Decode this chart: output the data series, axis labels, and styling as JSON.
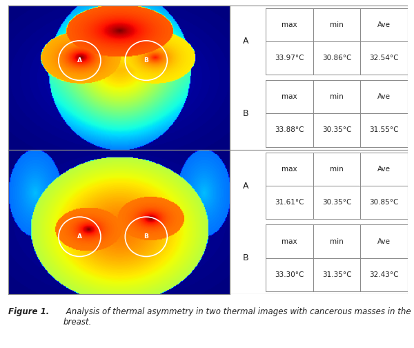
{
  "figure_caption_bold": "Figure 1.",
  "figure_caption_italic": " Analysis of thermal asymmetry in two thermal images with cancerous masses in the breast.",
  "table1": {
    "A": {
      "max": "33.97°C",
      "min": "30.86°C",
      "ave": "32.54°C"
    },
    "B": {
      "max": "33.88°C",
      "min": "30.35°C",
      "ave": "31.55°C"
    }
  },
  "table2": {
    "A": {
      "max": "31.61°C",
      "min": "30.35°C",
      "ave": "30.85°C"
    },
    "B": {
      "max": "33.30°C",
      "min": "31.35°C",
      "ave": "32.43°C"
    }
  },
  "col_headers": [
    "max",
    "min",
    "Ave"
  ],
  "row_labels": [
    "A",
    "B"
  ],
  "border_color": "#888888",
  "background_color": "#ffffff",
  "text_color": "#222222"
}
